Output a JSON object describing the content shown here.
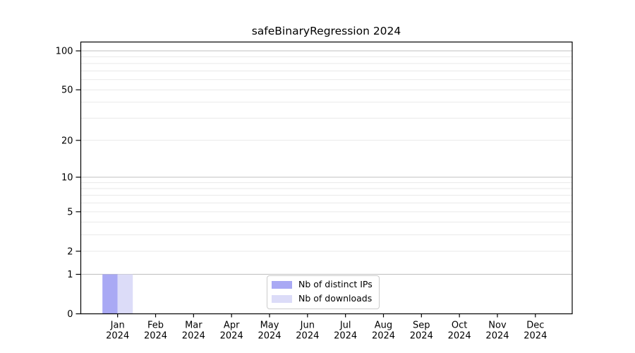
{
  "figure": {
    "background": "#ffffff",
    "text_color": "#000000"
  },
  "chart_data": {
    "type": "bar",
    "title": "safeBinaryRegression 2024",
    "xlabel": "",
    "ylabel": "",
    "categories": [
      "Jan",
      "Feb",
      "Mar",
      "Apr",
      "May",
      "Jun",
      "Jul",
      "Aug",
      "Sep",
      "Oct",
      "Nov",
      "Dec"
    ],
    "category_year": "2024",
    "series": [
      {
        "name": "Nb of distinct IPs",
        "color": "#a9a9f4",
        "values": [
          1,
          0,
          0,
          0,
          0,
          0,
          0,
          0,
          0,
          0,
          0,
          0
        ]
      },
      {
        "name": "Nb of downloads",
        "color": "#dcdcf8",
        "values": [
          1,
          0,
          0,
          0,
          0,
          0,
          0,
          0,
          0,
          0,
          0,
          0
        ]
      }
    ],
    "yscale": "log1p",
    "ylim": [
      0,
      116
    ],
    "yticks": [
      0,
      1,
      2,
      5,
      10,
      20,
      50,
      100
    ],
    "major_gridlines": [
      1,
      10,
      100
    ],
    "minor_gridlines": [
      2,
      3,
      4,
      5,
      6,
      7,
      8,
      9,
      20,
      30,
      40,
      50,
      60,
      70,
      80,
      90
    ],
    "grid": {
      "major_color": "#bfbfbf",
      "minor_color": "#e9e9e9",
      "orientation": "horizontal"
    },
    "legend": {
      "position": "lower-center",
      "border_color": "#cccccc"
    },
    "spine_color": "#000000"
  }
}
